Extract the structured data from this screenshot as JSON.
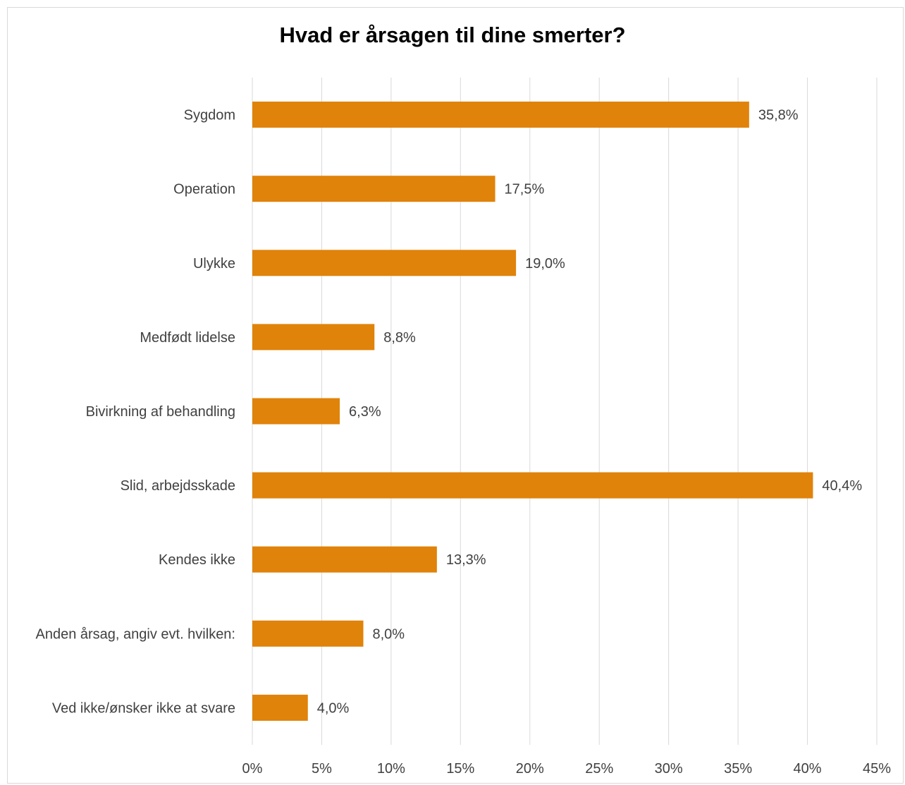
{
  "chart_data": {
    "type": "bar",
    "orientation": "horizontal",
    "title": "Hvad er årsagen til dine smerter?",
    "xlabel": "",
    "ylabel": "",
    "categories": [
      "Sygdom",
      "Operation",
      "Ulykke",
      "Medfødt lidelse",
      "Bivirkning af behandling",
      "Slid, arbejdsskade",
      "Kendes ikke",
      "Anden årsag, angiv evt. hvilken:",
      "Ved ikke/ønsker ikke at svare"
    ],
    "values": [
      35.8,
      17.5,
      19.0,
      8.8,
      6.3,
      40.4,
      13.3,
      8.0,
      4.0
    ],
    "data_labels": [
      "35,8%",
      "17,5%",
      "19,0%",
      "8,8%",
      "6,3%",
      "40,4%",
      "13,3%",
      "8,0%",
      "4,0%"
    ],
    "xlim": [
      0,
      45
    ],
    "x_ticks": [
      0,
      5,
      10,
      15,
      20,
      25,
      30,
      35,
      40,
      45
    ],
    "x_tick_labels": [
      "0%",
      "5%",
      "10%",
      "15%",
      "20%",
      "25%",
      "30%",
      "35%",
      "40%",
      "45%"
    ],
    "grid": true,
    "legend": "none",
    "bar_color": "#E0830A",
    "grid_color": "#d9d9d9",
    "text_color": "#404040"
  }
}
